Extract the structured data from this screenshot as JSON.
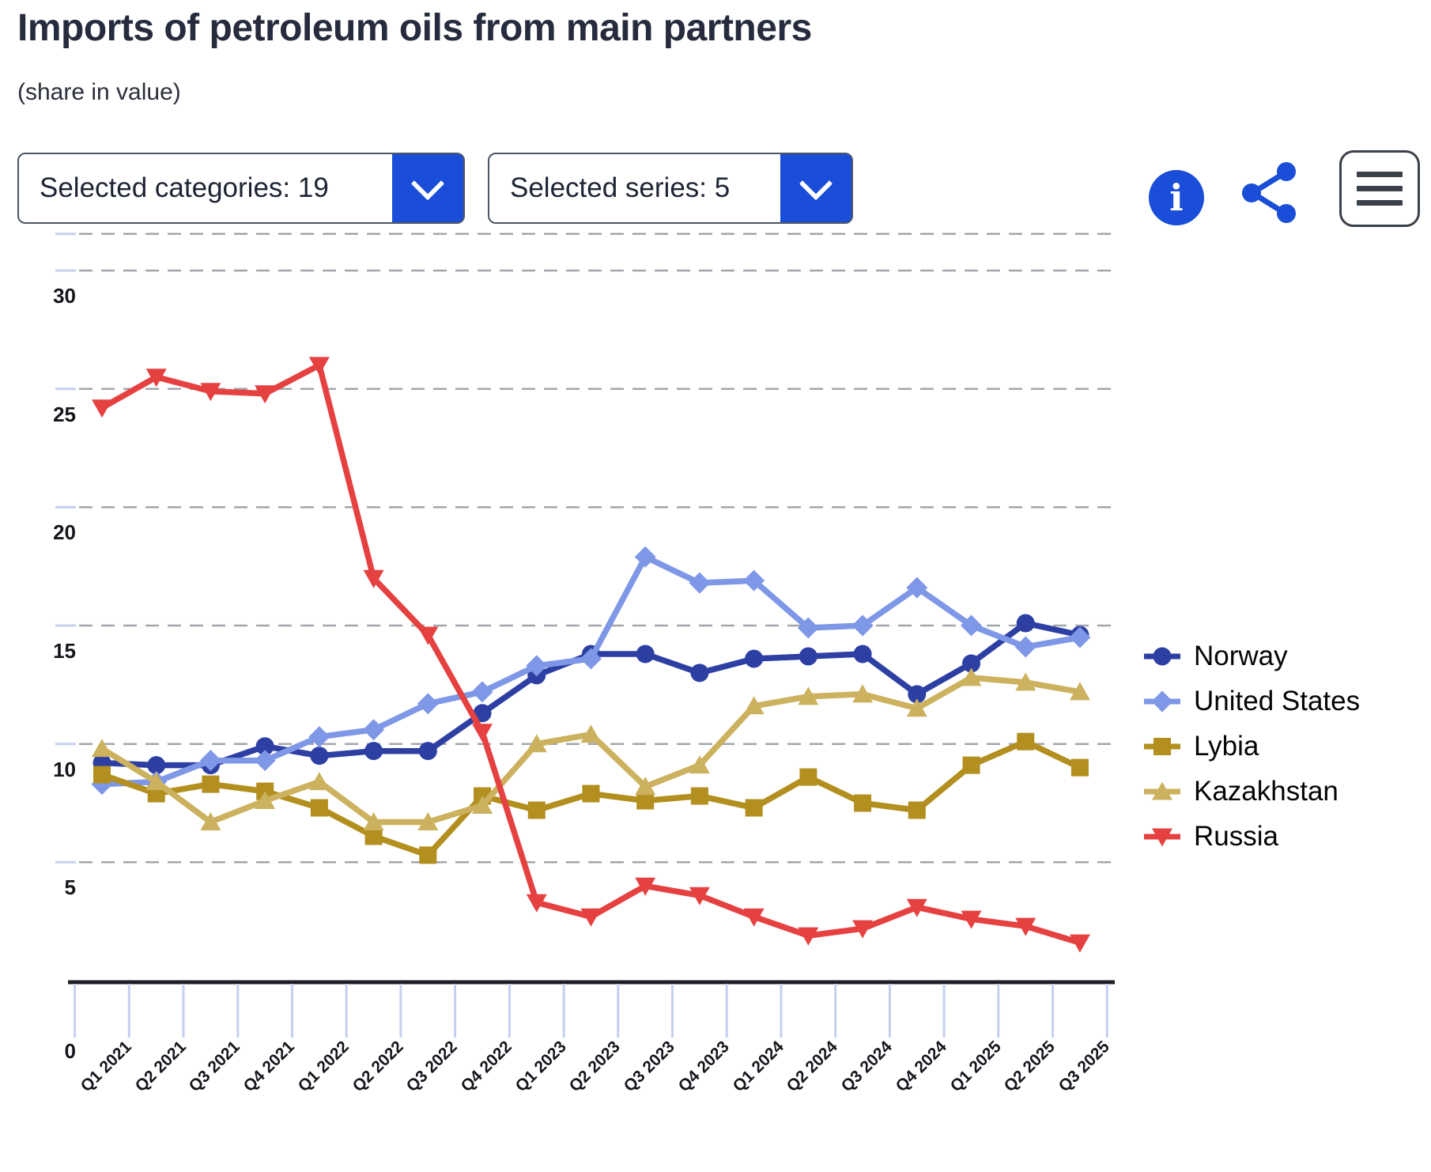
{
  "header": {
    "title": "Imports of petroleum oils from main partners",
    "subtitle": "(share in value)"
  },
  "controls": {
    "categories_label": "Selected categories: 19",
    "series_label": "Selected series: 5",
    "icons": [
      "chevron-down-icon",
      "info-icon",
      "share-icon",
      "hamburger-menu-icon"
    ],
    "accent_blue": "#1a4ed8",
    "info_glyph": "i"
  },
  "chart_style": {
    "grid_color": "#a2a6ad",
    "tick_color": "#c5cfee",
    "axis_color": "#1c1f26",
    "label_color": "#14161c"
  },
  "chart_data": {
    "type": "line",
    "title": "Imports of petroleum oils from main partners",
    "subtitle": "(share in value)",
    "grid": true,
    "legend_position": "right",
    "ylim": [
      0,
      31.5
    ],
    "yticks": [
      0,
      5,
      10,
      15,
      20,
      25,
      30
    ],
    "categories": [
      "Q1 2021",
      "Q2 2021",
      "Q3 2021",
      "Q4 2021",
      "Q1 2022",
      "Q2 2022",
      "Q3 2022",
      "Q4 2022",
      "Q1 2023",
      "Q2 2023",
      "Q3 2023",
      "Q4 2023",
      "Q1 2024",
      "Q2 2024",
      "Q3 2024",
      "Q4 2024",
      "Q1 2025",
      "Q2 2025",
      "Q3 2025"
    ],
    "series": [
      {
        "name": "Norway",
        "marker": "circle",
        "color": "#2d3fa3",
        "values": [
          9.2,
          9.1,
          9.1,
          9.9,
          9.5,
          9.7,
          9.7,
          11.3,
          12.9,
          13.8,
          13.8,
          13.0,
          13.6,
          13.7,
          13.8,
          12.1,
          13.4,
          15.1,
          14.6
        ]
      },
      {
        "name": "United States",
        "marker": "diamond",
        "color": "#7e97e6",
        "values": [
          8.3,
          8.4,
          9.3,
          9.3,
          10.3,
          10.6,
          11.7,
          12.2,
          13.3,
          13.6,
          17.9,
          16.8,
          16.9,
          14.9,
          15.0,
          16.6,
          15.0,
          14.1,
          14.5
        ]
      },
      {
        "name": "Lybia",
        "marker": "square",
        "color": "#b28f1e",
        "values": [
          8.7,
          7.9,
          8.3,
          8.0,
          7.3,
          6.1,
          5.3,
          7.8,
          7.2,
          7.9,
          7.6,
          7.8,
          7.3,
          8.6,
          7.5,
          7.2,
          9.1,
          10.1,
          9.0
        ]
      },
      {
        "name": "Kazakhstan",
        "marker": "triangle-up",
        "color": "#ccb15e",
        "values": [
          9.8,
          8.4,
          6.7,
          7.6,
          8.4,
          6.7,
          6.7,
          7.4,
          10.0,
          10.4,
          8.2,
          9.1,
          11.6,
          12.0,
          12.1,
          11.5,
          12.8,
          12.6,
          12.2
        ]
      },
      {
        "name": "Russia",
        "marker": "triangle-down",
        "color": "#e64141",
        "values": [
          24.2,
          25.5,
          24.9,
          24.8,
          26.0,
          17.0,
          14.6,
          10.5,
          3.3,
          2.7,
          4.0,
          3.6,
          2.7,
          1.9,
          2.2,
          3.1,
          2.6,
          2.3,
          1.6
        ]
      }
    ]
  }
}
